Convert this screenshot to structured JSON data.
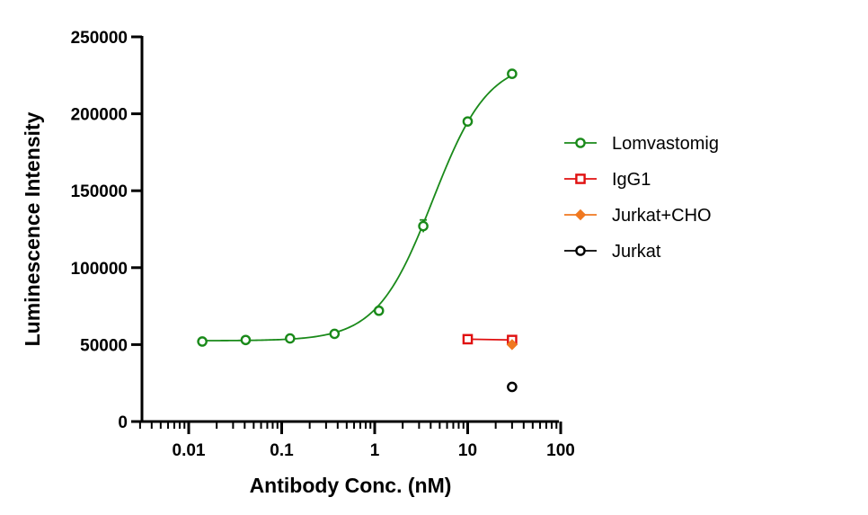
{
  "chart_data": {
    "type": "scatter",
    "xlabel": "Antibody Conc. (nM)",
    "ylabel": "Luminescence Intensity",
    "x_scale": "log",
    "xlim": [
      0.003,
      100
    ],
    "ylim": [
      0,
      250000
    ],
    "x_ticks": [
      "0.01",
      "0.1",
      "1",
      "10",
      "100"
    ],
    "y_ticks": [
      "0",
      "50000",
      "100000",
      "150000",
      "200000",
      "250000"
    ],
    "grid": false,
    "legend_position": "right",
    "series": [
      {
        "name": "Lomvastomig",
        "color": "#1a8a1a",
        "marker": "circle",
        "x": [
          0.014,
          0.041,
          0.123,
          0.37,
          1.11,
          3.33,
          10,
          30
        ],
        "y": [
          52000,
          53000,
          54000,
          57000,
          72000,
          127000,
          195000,
          226000
        ],
        "error": [
          0,
          0,
          0,
          0,
          0,
          4000,
          1500,
          1200
        ],
        "fit_curve": true
      },
      {
        "name": "IgG1",
        "color": "#e01010",
        "marker": "square",
        "x": [
          10,
          30
        ],
        "y": [
          53500,
          53000
        ],
        "connect": true
      },
      {
        "name": "Jurkat+CHO",
        "color": "#f07820",
        "marker": "diamond",
        "x": [
          30
        ],
        "y": [
          50000
        ]
      },
      {
        "name": "Jurkat",
        "color": "#000000",
        "marker": "circle",
        "x": [
          30
        ],
        "y": [
          22500
        ]
      }
    ]
  }
}
